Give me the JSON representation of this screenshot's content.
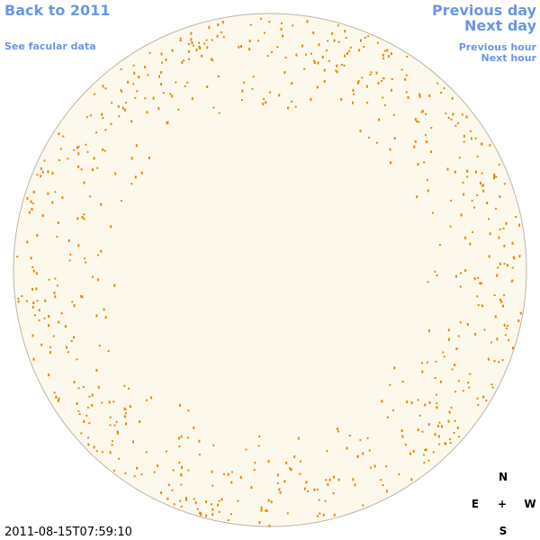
{
  "nav": {
    "back": "Back to 2011",
    "facular": "See facular data",
    "prev_day": "Previous day",
    "next_day": "Next day",
    "prev_hour": "Previous hour",
    "next_hour": "Next hour"
  },
  "timestamp": "2011-08-15T07:59:10",
  "compass": {
    "north": "N",
    "east": "E",
    "center": "+",
    "west": "W",
    "south": "S"
  }
}
